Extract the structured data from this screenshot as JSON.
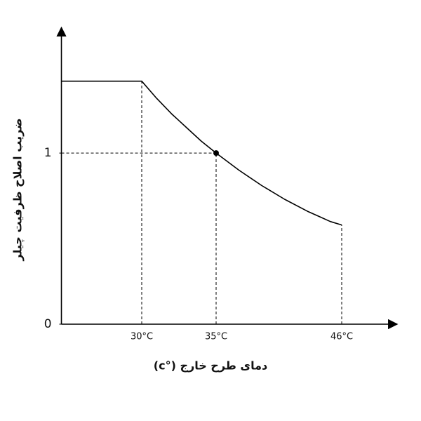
{
  "chart_data": {
    "type": "line",
    "x_label": "دمای طرح خارج (°c)",
    "y_label": "ضریب اصلاح ظرفیت چیلر",
    "x": [
      24.6,
      30,
      31,
      32,
      33,
      34,
      35,
      37,
      39,
      41,
      43,
      44,
      45,
      46
    ],
    "series": [
      {
        "color": "#000000",
        "values": [
          1.42,
          1.42,
          1.32,
          1.23,
          1.15,
          1.07,
          1.0,
          0.9,
          0.81,
          0.73,
          0.66,
          0.63,
          0.6,
          0.58
        ]
      }
    ],
    "highlight": {
      "x": 35,
      "y": 1
    },
    "xlim": [
      24.6,
      50.5
    ],
    "xticks": [
      {
        "value": 30,
        "label": "30°C"
      },
      {
        "value": 35,
        "label": "35°C"
      },
      {
        "value": 46,
        "label": "46°C"
      }
    ],
    "ylim": [
      0,
      1.71
    ],
    "yticks": [
      0,
      1
    ]
  }
}
